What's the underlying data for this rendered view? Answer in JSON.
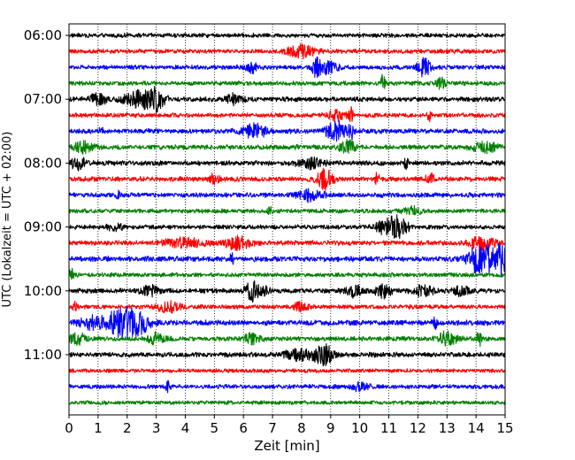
{
  "chart_data": {
    "type": "line",
    "title": "",
    "xlabel": "Zeit  [min]",
    "ylabel": "UTC (Lokalzeit = UTC + 02:00)",
    "xlim": [
      0,
      15
    ],
    "x_ticks": [
      "0",
      "1",
      "2",
      "3",
      "4",
      "5",
      "6",
      "7",
      "8",
      "9",
      "10",
      "11",
      "12",
      "13",
      "14",
      "15"
    ],
    "y_tick_labels": [
      "06:00",
      "07:00",
      "08:00",
      "09:00",
      "10:00",
      "11:00"
    ],
    "y_tick_rows": [
      0,
      4,
      8,
      12,
      16,
      20
    ],
    "grid": "vertical dotted",
    "row_minutes": 15,
    "row_colors": [
      "#000000",
      "#ff0000",
      "#0000ff",
      "#008000"
    ],
    "series": [
      {
        "start": "06:00",
        "events": [],
        "amp": 0.18
      },
      {
        "start": "06:15",
        "events": [
          {
            "t": 8.0,
            "a": 0.55,
            "w": 0.35
          }
        ],
        "amp": 0.18
      },
      {
        "start": "06:30",
        "events": [
          {
            "t": 6.3,
            "a": 0.45,
            "w": 0.15
          },
          {
            "t": 8.5,
            "a": 0.85,
            "w": 0.1
          },
          {
            "t": 8.9,
            "a": 0.6,
            "w": 0.25
          },
          {
            "t": 12.2,
            "a": 0.9,
            "w": 0.15
          }
        ],
        "amp": 0.18
      },
      {
        "start": "06:45",
        "events": [
          {
            "t": 10.8,
            "a": 0.8,
            "w": 0.05
          },
          {
            "t": 12.8,
            "a": 0.5,
            "w": 0.1
          }
        ],
        "amp": 0.18
      },
      {
        "start": "07:00",
        "events": [
          {
            "t": 1.0,
            "a": 0.5,
            "w": 0.2
          },
          {
            "t": 2.4,
            "a": 0.8,
            "w": 0.35
          },
          {
            "t": 3.0,
            "a": 0.9,
            "w": 0.2
          },
          {
            "t": 5.7,
            "a": 0.5,
            "w": 0.2
          }
        ],
        "amp": 0.2
      },
      {
        "start": "07:15",
        "events": [
          {
            "t": 9.2,
            "a": 0.6,
            "w": 0.2
          },
          {
            "t": 9.7,
            "a": 0.8,
            "w": 0.05
          },
          {
            "t": 12.4,
            "a": 0.6,
            "w": 0.05
          }
        ],
        "amp": 0.18
      },
      {
        "start": "07:30",
        "events": [
          {
            "t": 1.1,
            "a": 0.5,
            "w": 0.05
          },
          {
            "t": 6.4,
            "a": 0.6,
            "w": 0.3
          },
          {
            "t": 9.2,
            "a": 0.9,
            "w": 0.25
          },
          {
            "t": 9.7,
            "a": 0.7,
            "w": 0.05
          }
        ],
        "amp": 0.2
      },
      {
        "start": "07:45",
        "events": [
          {
            "t": 0.5,
            "a": 0.5,
            "w": 0.2
          },
          {
            "t": 9.6,
            "a": 0.6,
            "w": 0.2
          },
          {
            "t": 14.3,
            "a": 0.45,
            "w": 0.3
          }
        ],
        "amp": 0.2
      },
      {
        "start": "08:00",
        "events": [
          {
            "t": 0.3,
            "a": 0.5,
            "w": 0.2
          },
          {
            "t": 8.3,
            "a": 0.45,
            "w": 0.3
          },
          {
            "t": 11.6,
            "a": 0.45,
            "w": 0.05
          }
        ],
        "amp": 0.2
      },
      {
        "start": "08:15",
        "events": [
          {
            "t": 5.0,
            "a": 0.5,
            "w": 0.1
          },
          {
            "t": 8.8,
            "a": 0.9,
            "w": 0.2
          },
          {
            "t": 10.6,
            "a": 0.6,
            "w": 0.05
          },
          {
            "t": 12.4,
            "a": 0.5,
            "w": 0.1
          }
        ],
        "amp": 0.2
      },
      {
        "start": "08:30",
        "events": [
          {
            "t": 1.7,
            "a": 0.45,
            "w": 0.05
          },
          {
            "t": 8.3,
            "a": 0.5,
            "w": 0.3
          }
        ],
        "amp": 0.2
      },
      {
        "start": "08:45",
        "events": [
          {
            "t": 6.9,
            "a": 0.5,
            "w": 0.05
          },
          {
            "t": 11.8,
            "a": 0.35,
            "w": 0.2
          }
        ],
        "amp": 0.18
      },
      {
        "start": "09:00",
        "events": [
          {
            "t": 1.6,
            "a": 0.3,
            "w": 0.2
          },
          {
            "t": 11.0,
            "a": 0.75,
            "w": 0.3
          },
          {
            "t": 11.4,
            "a": 0.6,
            "w": 0.2
          }
        ],
        "amp": 0.18
      },
      {
        "start": "09:15",
        "events": [
          {
            "t": 4.0,
            "a": 0.4,
            "w": 0.5
          },
          {
            "t": 5.8,
            "a": 0.6,
            "w": 0.3
          },
          {
            "t": 14.2,
            "a": 0.6,
            "w": 0.3
          }
        ],
        "amp": 0.2
      },
      {
        "start": "09:30",
        "events": [
          {
            "t": 5.6,
            "a": 0.5,
            "w": 0.05
          },
          {
            "t": 14.0,
            "a": 1.0,
            "w": 0.2
          },
          {
            "t": 14.5,
            "a": 1.2,
            "w": 0.3
          },
          {
            "t": 14.9,
            "a": 1.0,
            "w": 0.1
          }
        ],
        "amp": 0.22
      },
      {
        "start": "09:45",
        "events": [
          {
            "t": 0.1,
            "a": 0.8,
            "w": 0.05
          }
        ],
        "amp": 0.18
      },
      {
        "start": "10:00",
        "events": [
          {
            "t": 2.8,
            "a": 0.45,
            "w": 0.2
          },
          {
            "t": 6.4,
            "a": 0.9,
            "w": 0.25
          },
          {
            "t": 9.8,
            "a": 0.5,
            "w": 0.2
          },
          {
            "t": 10.8,
            "a": 0.6,
            "w": 0.2
          },
          {
            "t": 12.2,
            "a": 0.5,
            "w": 0.2
          },
          {
            "t": 13.5,
            "a": 0.4,
            "w": 0.2
          }
        ],
        "amp": 0.2
      },
      {
        "start": "10:15",
        "events": [
          {
            "t": 0.2,
            "a": 0.5,
            "w": 0.05
          },
          {
            "t": 3.4,
            "a": 0.45,
            "w": 0.3
          },
          {
            "t": 8.0,
            "a": 0.4,
            "w": 0.2
          }
        ],
        "amp": 0.18
      },
      {
        "start": "10:30",
        "events": [
          {
            "t": 0.8,
            "a": 0.5,
            "w": 0.3
          },
          {
            "t": 1.8,
            "a": 1.2,
            "w": 0.4
          },
          {
            "t": 2.4,
            "a": 0.7,
            "w": 0.3
          },
          {
            "t": 12.6,
            "a": 0.7,
            "w": 0.05
          }
        ],
        "amp": 0.22
      },
      {
        "start": "10:45",
        "events": [
          {
            "t": 0.3,
            "a": 0.5,
            "w": 0.2
          },
          {
            "t": 3.0,
            "a": 0.5,
            "w": 0.2
          },
          {
            "t": 6.3,
            "a": 0.5,
            "w": 0.2
          },
          {
            "t": 13.0,
            "a": 0.7,
            "w": 0.2
          },
          {
            "t": 14.1,
            "a": 0.8,
            "w": 0.05
          }
        ],
        "amp": 0.2
      },
      {
        "start": "11:00",
        "events": [
          {
            "t": 8.0,
            "a": 0.5,
            "w": 0.4
          },
          {
            "t": 8.8,
            "a": 0.9,
            "w": 0.2
          }
        ],
        "amp": 0.2
      },
      {
        "start": "11:15",
        "events": [],
        "amp": 0.16
      },
      {
        "start": "11:30",
        "events": [
          {
            "t": 3.4,
            "a": 0.45,
            "w": 0.05
          },
          {
            "t": 10.0,
            "a": 0.35,
            "w": 0.2
          }
        ],
        "amp": 0.18
      },
      {
        "start": "11:45",
        "events": [],
        "amp": 0.16
      }
    ]
  }
}
